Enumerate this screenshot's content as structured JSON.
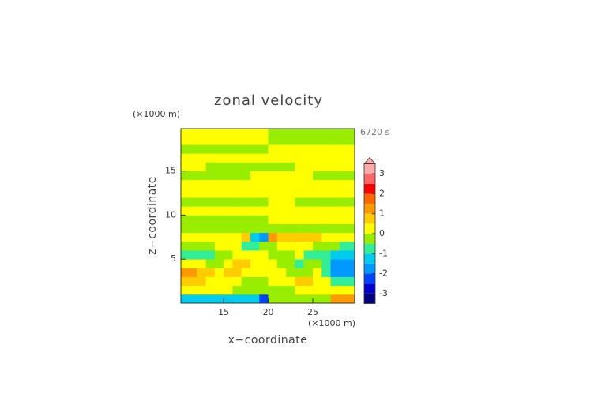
{
  "chart_data": {
    "type": "contour",
    "title": "zonal velocity",
    "x_label": "x−coordinate",
    "y_label": "z−coordinate",
    "x_unit": "(×1000 m)",
    "y_unit": "(×1000 m)",
    "time_label": "6720 s",
    "xlim": [
      10.2,
      29.7
    ],
    "ylim": [
      0,
      19.8
    ],
    "xticks": [
      15,
      20,
      25
    ],
    "yticks": [
      5,
      10,
      15
    ],
    "x_edges": [
      10,
      11,
      12,
      13,
      14,
      15,
      16,
      17,
      18,
      19,
      20,
      21,
      22,
      23,
      24,
      25,
      26,
      27,
      28,
      29,
      30
    ],
    "y_edges": [
      0,
      1,
      2,
      3,
      4,
      5,
      6,
      7,
      8,
      9,
      10,
      11,
      12,
      13,
      14,
      15,
      16,
      17,
      18,
      19,
      20
    ],
    "values": [
      [
        -1.2,
        -1.2,
        -1.2,
        -1.2,
        -1.2,
        -1.2,
        -1.2,
        -1.2,
        -1.2,
        -2.2,
        -0.2,
        -0.2,
        -0.2,
        -0.2,
        -0.2,
        -0.2,
        -0.2,
        1.2,
        1.2,
        1.2
      ],
      [
        0.2,
        0.2,
        0.2,
        0.2,
        0.2,
        0.2,
        -0.2,
        -0.2,
        -0.2,
        -0.2,
        -0.2,
        -0.2,
        -0.2,
        0.2,
        0.2,
        0.2,
        0.2,
        0.2,
        0.2,
        0.2
      ],
      [
        0.8,
        0.8,
        0.8,
        0.2,
        0.2,
        0.2,
        0.2,
        -0.2,
        -0.2,
        -0.2,
        0.2,
        0.2,
        0.2,
        0.8,
        0.8,
        0.2,
        0.2,
        -0.8,
        -0.8,
        -0.8
      ],
      [
        1.2,
        1.2,
        0.8,
        0.8,
        0.2,
        0.8,
        0.8,
        0.2,
        0.2,
        0.2,
        0.2,
        0.2,
        -0.2,
        -0.2,
        -0.2,
        0.2,
        -0.8,
        -1.8,
        -1.8,
        -1.8
      ],
      [
        0.2,
        0.2,
        0.2,
        -0.2,
        -0.2,
        0.3,
        0.8,
        0.8,
        0.2,
        0.2,
        0.2,
        -0.2,
        -0.2,
        -0.8,
        -0.2,
        -0.2,
        -0.8,
        -1.6,
        -1.6,
        -1.6
      ],
      [
        -0.8,
        -0.8,
        -0.8,
        -0.8,
        -0.2,
        -0.2,
        0.3,
        0.3,
        0.3,
        0.3,
        -0.3,
        -0.3,
        -0.3,
        0.3,
        -0.8,
        -0.8,
        -0.8,
        -1.2,
        -1.2,
        -1.2
      ],
      [
        -0.2,
        -0.2,
        -0.2,
        -0.2,
        0.2,
        0.2,
        0.2,
        -0.8,
        -0.8,
        -0.3,
        -0.2,
        0.3,
        0.3,
        0.3,
        0.3,
        -0.3,
        -0.3,
        -0.3,
        -0.8,
        -0.8
      ],
      [
        0.2,
        0.2,
        0.2,
        0.2,
        0.2,
        0.2,
        0.2,
        0.8,
        -1.2,
        -1.6,
        1.2,
        0.8,
        0.8,
        0.8,
        0.8,
        0.8,
        0.2,
        0.2,
        0.2,
        0.2
      ],
      [
        -0.2,
        -0.2,
        -0.2,
        -0.2,
        -0.2,
        -0.2,
        -0.2,
        -0.2,
        -0.2,
        -0.2,
        -0.2,
        -0.2,
        -0.2,
        -0.2,
        -0.2,
        -0.2,
        -0.2,
        -0.2,
        -0.2,
        -0.2
      ],
      [
        -0.2,
        -0.2,
        -0.2,
        -0.2,
        -0.2,
        -0.2,
        -0.2,
        -0.2,
        -0.2,
        -0.2,
        0.2,
        0.2,
        0.2,
        0.2,
        0.2,
        0.2,
        0.2,
        0.2,
        0.2,
        0.2
      ],
      [
        0.2,
        0.2,
        0.2,
        0.2,
        0.2,
        0.2,
        0.2,
        0.2,
        0.2,
        0.2,
        0.2,
        0.2,
        0.2,
        0.2,
        0.2,
        0.2,
        0.2,
        0.2,
        0.2,
        0.2
      ],
      [
        -0.2,
        -0.2,
        -0.2,
        -0.2,
        -0.2,
        -0.2,
        -0.2,
        -0.2,
        -0.2,
        -0.2,
        0.2,
        0.2,
        0.2,
        -0.2,
        -0.2,
        -0.2,
        -0.2,
        -0.2,
        -0.2,
        -0.2
      ],
      [
        0.2,
        0.2,
        0.2,
        0.2,
        0.2,
        0.2,
        0.2,
        0.2,
        0.2,
        0.2,
        0.2,
        0.2,
        0.2,
        0.2,
        0.2,
        0.2,
        0.2,
        0.2,
        0.2,
        0.2
      ],
      [
        0.2,
        0.2,
        0.2,
        0.2,
        0.2,
        0.2,
        0.2,
        0.2,
        0.2,
        0.2,
        0.2,
        0.2,
        0.2,
        0.2,
        0.2,
        0.2,
        0.2,
        0.2,
        0.2,
        0.2
      ],
      [
        -0.2,
        -0.2,
        -0.2,
        -0.2,
        -0.2,
        -0.2,
        -0.2,
        -0.2,
        0.2,
        0.2,
        0.2,
        0.2,
        0.2,
        0.2,
        0.2,
        -0.2,
        -0.2,
        -0.2,
        -0.2,
        -0.2
      ],
      [
        0.2,
        0.2,
        0.2,
        -0.2,
        -0.2,
        -0.2,
        -0.2,
        -0.2,
        -0.2,
        -0.2,
        -0.2,
        -0.2,
        -0.2,
        0.2,
        0.2,
        0.2,
        0.2,
        0.2,
        0.2,
        0.2
      ],
      [
        0.2,
        0.2,
        0.2,
        0.2,
        0.2,
        0.2,
        0.2,
        0.2,
        0.2,
        0.2,
        0.2,
        0.2,
        0.2,
        0.2,
        0.2,
        0.2,
        0.2,
        0.2,
        0.2,
        0.2
      ],
      [
        -0.2,
        -0.2,
        -0.2,
        -0.2,
        -0.2,
        -0.2,
        -0.2,
        -0.2,
        -0.2,
        -0.2,
        0.2,
        0.2,
        0.2,
        0.2,
        0.2,
        0.2,
        0.2,
        0.2,
        0.2,
        0.2
      ],
      [
        0.2,
        0.2,
        0.2,
        0.2,
        0.2,
        0.2,
        0.2,
        0.2,
        0.2,
        0.2,
        -0.2,
        -0.2,
        -0.2,
        -0.2,
        -0.2,
        -0.2,
        -0.2,
        -0.2,
        -0.2,
        -0.2
      ],
      [
        0.2,
        0.2,
        0.2,
        0.2,
        0.2,
        0.2,
        0.2,
        0.2,
        0.2,
        0.2,
        -0.2,
        -0.2,
        -0.2,
        -0.2,
        -0.2,
        -0.2,
        -0.2,
        -0.2,
        -0.2,
        -0.2
      ]
    ],
    "levels": [
      -3.5,
      -3,
      -2.5,
      -2,
      -1.5,
      -1,
      -0.5,
      0,
      0.5,
      1,
      1.5,
      2,
      2.5,
      3,
      3.5
    ],
    "colors": [
      "#000080",
      "#0000cc",
      "#0044ff",
      "#0099ff",
      "#00ccee",
      "#33ee99",
      "#99ee00",
      "#ffff00",
      "#ffcc00",
      "#ff9900",
      "#ff6600",
      "#ff0000",
      "#ff6666",
      "#ffaaaa"
    ],
    "colorbar_ticks": [
      -3,
      -2,
      -1,
      0,
      1,
      2,
      3
    ],
    "colorbar_extend": "max"
  }
}
